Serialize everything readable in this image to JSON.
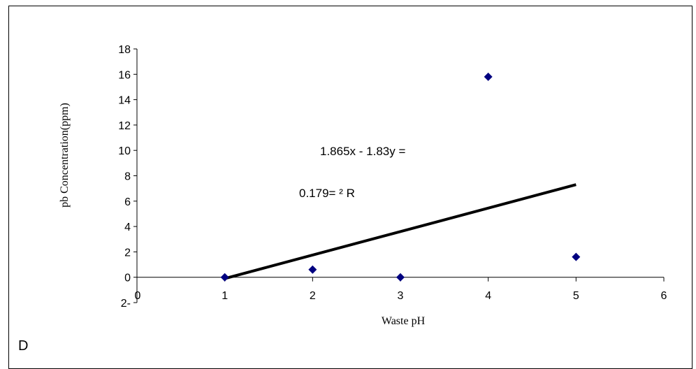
{
  "panel_label": "D",
  "chart_data": {
    "type": "scatter",
    "xlabel": "Waste pH",
    "ylabel": "pb Concentration(ppm)",
    "xlim": [
      0,
      6
    ],
    "ylim": [
      -2,
      18
    ],
    "x_ticks": [
      "0",
      "1",
      "2",
      "3",
      "4",
      "5",
      "6"
    ],
    "y_ticks": [
      "2-",
      "0",
      "2",
      "4",
      "6",
      "8",
      "10",
      "12",
      "14",
      "16",
      "18"
    ],
    "marker_color": "#000080",
    "trendline_color": "#000000",
    "points": [
      {
        "x": 1,
        "y": 0
      },
      {
        "x": 2,
        "y": 0.6
      },
      {
        "x": 3,
        "y": 0
      },
      {
        "x": 4,
        "y": 15.8
      },
      {
        "x": 5,
        "y": 1.6
      }
    ],
    "trendline": {
      "x": [
        1,
        5
      ],
      "y": [
        -0.1,
        7.3
      ]
    },
    "annotations": [
      "1.865x - 1.83y =",
      "0.179= ² R"
    ]
  }
}
